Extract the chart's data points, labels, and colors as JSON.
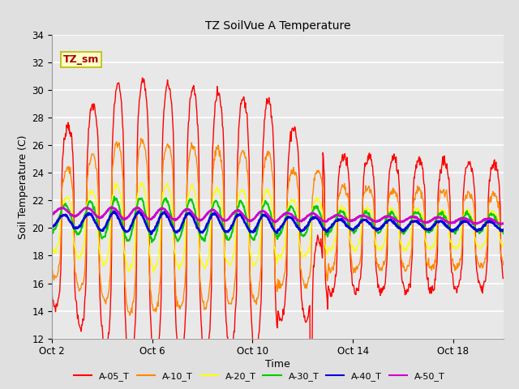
{
  "title": "TZ SoilVue A Temperature",
  "xlabel": "Time",
  "ylabel": "Soil Temperature (C)",
  "ylim": [
    12,
    34
  ],
  "yticks": [
    12,
    14,
    16,
    18,
    20,
    22,
    24,
    26,
    28,
    30,
    32,
    34
  ],
  "background_color": "#e0e0e0",
  "plot_bg_color": "#e8e8e8",
  "grid_color": "#ffffff",
  "annotation_text": "TZ_sm",
  "annotation_color": "#aa0000",
  "annotation_bg": "#ffffcc",
  "annotation_border": "#bbbb00",
  "series_colors": {
    "A-05_T": "#ff0000",
    "A-10_T": "#ff8800",
    "A-20_T": "#ffff00",
    "A-30_T": "#00cc00",
    "A-40_T": "#0000dd",
    "A-50_T": "#cc00cc"
  },
  "series_linewidths": {
    "A-05_T": 1.0,
    "A-10_T": 1.0,
    "A-20_T": 1.0,
    "A-30_T": 1.5,
    "A-40_T": 2.0,
    "A-50_T": 2.0
  },
  "x_tick_labels": [
    "Oct 2",
    "Oct 6",
    "Oct 10",
    "Oct 14",
    "Oct 18"
  ],
  "x_tick_positions": [
    0,
    4,
    8,
    12,
    16
  ],
  "figsize": [
    6.4,
    4.8
  ],
  "dpi": 100
}
